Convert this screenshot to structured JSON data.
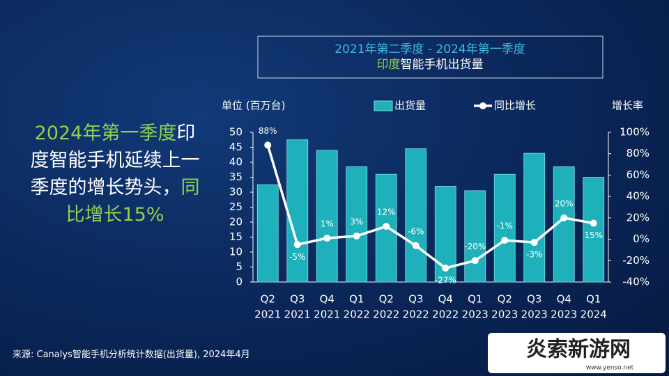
{
  "header": {
    "title_range": "2021年第二季度 -  2024年第一季度",
    "title_subject": [
      {
        "text": "印度",
        "color": "#8fd14f"
      },
      {
        "text": "智能手机出货量",
        "color": "#ffffff"
      }
    ]
  },
  "headline": [
    {
      "text": "2024年第一季度",
      "color": "#8fd14f"
    },
    {
      "text": "印度智能手机延续上一季度的增长势头，",
      "color": "#ffffff"
    },
    {
      "text": "同比增长",
      "color": "#8fd14f"
    },
    {
      "text": "15%",
      "color": "#8fd14f"
    }
  ],
  "source": "来源: Canalys智能手机分析统计数据(出货量), 2024年4月",
  "watermark": {
    "name": "炎索新游网",
    "url": "www.yenso.net"
  },
  "chart_data": {
    "type": "bar",
    "y_label": "单位 (百万台)",
    "y2_label": "增长率",
    "categories": [
      [
        "Q2",
        "2021"
      ],
      [
        "Q3",
        "2021"
      ],
      [
        "Q4",
        "2021"
      ],
      [
        "Q1",
        "2022"
      ],
      [
        "Q2",
        "2022"
      ],
      [
        "Q3",
        "2022"
      ],
      [
        "Q4",
        "2022"
      ],
      [
        "Q1",
        "2023"
      ],
      [
        "Q2",
        "2023"
      ],
      [
        "Q3",
        "2023"
      ],
      [
        "Q4",
        "2023"
      ],
      [
        "Q1",
        "2024"
      ]
    ],
    "series": [
      {
        "name": "出货量",
        "type": "bar",
        "color": "#1fb1bb",
        "values": [
          32.5,
          47.5,
          44,
          38.5,
          36,
          44.5,
          32,
          30.5,
          36,
          43,
          38.5,
          35
        ]
      },
      {
        "name": "同比增长",
        "type": "line",
        "axis": "y2",
        "color": "#ffffff",
        "values": [
          88,
          -5,
          1,
          3,
          12,
          -6,
          -27,
          -20,
          -1,
          -3,
          20,
          15
        ],
        "value_labels": [
          "88%",
          "-5%",
          "1%",
          "3%",
          "12%",
          "-6%",
          "-27%",
          "-20%",
          "-1%",
          "-3%",
          "20%",
          "15%"
        ]
      }
    ],
    "ylim": [
      0,
      50
    ],
    "yticks": [
      0,
      5,
      10,
      15,
      20,
      25,
      30,
      35,
      40,
      45,
      50
    ],
    "y2lim": [
      -40,
      100
    ],
    "y2ticks": [
      {
        "value": -40,
        "label": "-40%"
      },
      {
        "value": -20,
        "label": "-20%"
      },
      {
        "value": 0,
        "label": "0%"
      },
      {
        "value": 20,
        "label": "20%"
      },
      {
        "value": 40,
        "label": "40%"
      },
      {
        "value": 60,
        "label": "60%"
      },
      {
        "value": 80,
        "label": "80%"
      },
      {
        "value": 100,
        "label": "100%"
      }
    ]
  }
}
